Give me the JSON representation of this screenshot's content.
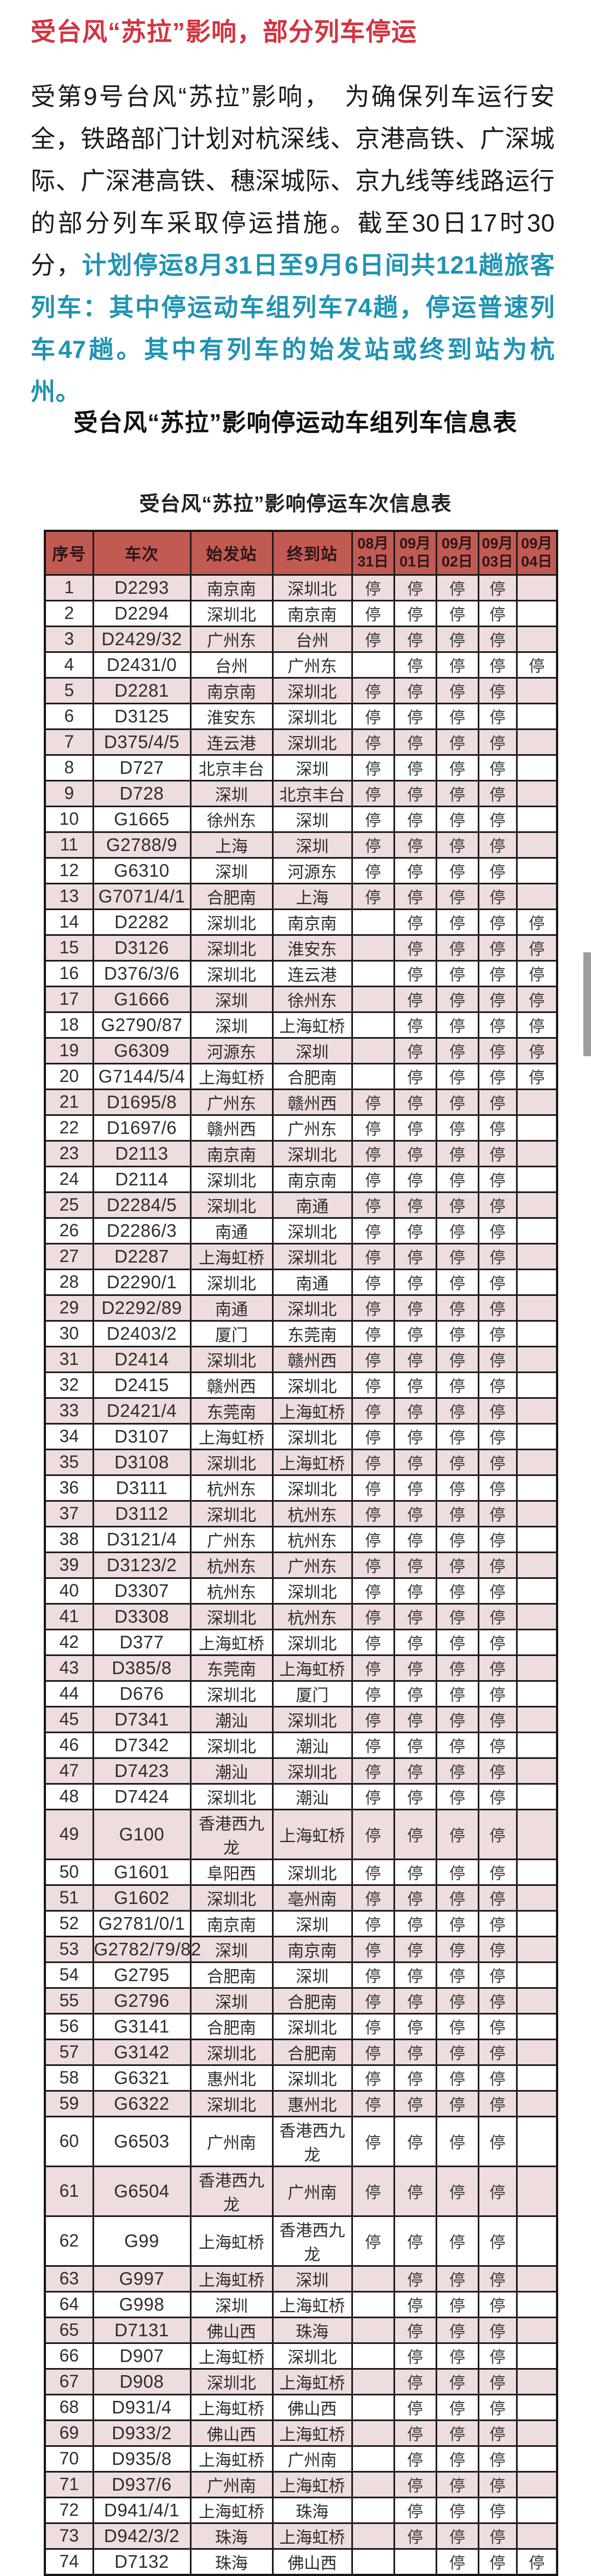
{
  "article": {
    "title": "受台风“苏拉”影响，部分列车停运",
    "paragraph_black": "受第9号台风“苏拉”影响，　为确保列车运行安全，铁路部门计划对杭深线、京港高铁、广深城际、广深港高铁、穗深城际、京九线等线路运行的部分列车采取停运措施。截至30日17时30分，",
    "paragraph_highlight": "计划停运8月31日至9月6日间共121趟旅客列车：其中停运动车组列车74趟，停运普速列车47趟。其中有列车的始发站或终到站为杭州。",
    "section_heading": "受台风“苏拉”影响停运动车组列车信息表"
  },
  "colors": {
    "title_red": "#d23440",
    "highlight_teal": "#2093b2",
    "table_header_bg": "#c25a54",
    "table_header_text": "#2b1618",
    "stripe_pink": "#efdcdc",
    "border_dark": "#1c1c1c",
    "scrollbar_grey": "#9d9d9d"
  },
  "table": {
    "title": "受台风“苏拉”影响停运车次信息表",
    "columns": [
      "序号",
      "车次",
      "始发站",
      "终到站",
      "08月\n31日",
      "09月\n01日",
      "09月\n02日",
      "09月\n03日",
      "09月\n04日"
    ],
    "rows": [
      {
        "no": "1",
        "train": "D2293",
        "from": "南京南",
        "to": "深圳北",
        "stops": [
          "停",
          "停",
          "停",
          "停",
          ""
        ]
      },
      {
        "no": "2",
        "train": "D2294",
        "from": "深圳北",
        "to": "南京南",
        "stops": [
          "停",
          "停",
          "停",
          "停",
          ""
        ]
      },
      {
        "no": "3",
        "train": "D2429/32",
        "from": "广州东",
        "to": "台州",
        "stops": [
          "停",
          "停",
          "停",
          "停",
          ""
        ]
      },
      {
        "no": "4",
        "train": "D2431/0",
        "from": "台州",
        "to": "广州东",
        "stops": [
          "",
          "停",
          "停",
          "停",
          "停"
        ]
      },
      {
        "no": "5",
        "train": "D2281",
        "from": "南京南",
        "to": "深圳北",
        "stops": [
          "停",
          "停",
          "停",
          "停",
          ""
        ]
      },
      {
        "no": "6",
        "train": "D3125",
        "from": "淮安东",
        "to": "深圳北",
        "stops": [
          "停",
          "停",
          "停",
          "停",
          ""
        ]
      },
      {
        "no": "7",
        "train": "D375/4/5",
        "from": "连云港",
        "to": "深圳北",
        "stops": [
          "停",
          "停",
          "停",
          "停",
          ""
        ]
      },
      {
        "no": "8",
        "train": "D727",
        "from": "北京丰台",
        "to": "深圳",
        "stops": [
          "停",
          "停",
          "停",
          "停",
          ""
        ]
      },
      {
        "no": "9",
        "train": "D728",
        "from": "深圳",
        "to": "北京丰台",
        "stops": [
          "停",
          "停",
          "停",
          "停",
          ""
        ]
      },
      {
        "no": "10",
        "train": "G1665",
        "from": "徐州东",
        "to": "深圳",
        "stops": [
          "停",
          "停",
          "停",
          "停",
          ""
        ]
      },
      {
        "no": "11",
        "train": "G2788/9",
        "from": "上海",
        "to": "深圳",
        "stops": [
          "停",
          "停",
          "停",
          "停",
          ""
        ]
      },
      {
        "no": "12",
        "train": "G6310",
        "from": "深圳",
        "to": "河源东",
        "stops": [
          "停",
          "停",
          "停",
          "停",
          ""
        ]
      },
      {
        "no": "13",
        "train": "G7071/4/1",
        "from": "合肥南",
        "to": "上海",
        "stops": [
          "停",
          "停",
          "停",
          "停",
          ""
        ]
      },
      {
        "no": "14",
        "train": "D2282",
        "from": "深圳北",
        "to": "南京南",
        "stops": [
          "",
          "停",
          "停",
          "停",
          "停"
        ]
      },
      {
        "no": "15",
        "train": "D3126",
        "from": "深圳北",
        "to": "淮安东",
        "stops": [
          "",
          "停",
          "停",
          "停",
          "停"
        ]
      },
      {
        "no": "16",
        "train": "D376/3/6",
        "from": "深圳北",
        "to": "连云港",
        "stops": [
          "",
          "停",
          "停",
          "停",
          "停"
        ]
      },
      {
        "no": "17",
        "train": "G1666",
        "from": "深圳",
        "to": "徐州东",
        "stops": [
          "",
          "停",
          "停",
          "停",
          "停"
        ]
      },
      {
        "no": "18",
        "train": "G2790/87",
        "from": "深圳",
        "to": "上海虹桥",
        "stops": [
          "",
          "停",
          "停",
          "停",
          "停"
        ]
      },
      {
        "no": "19",
        "train": "G6309",
        "from": "河源东",
        "to": "深圳",
        "stops": [
          "",
          "停",
          "停",
          "停",
          "停"
        ]
      },
      {
        "no": "20",
        "train": "G7144/5/4",
        "from": "上海虹桥",
        "to": "合肥南",
        "stops": [
          "",
          "停",
          "停",
          "停",
          "停"
        ]
      },
      {
        "no": "21",
        "train": "D1695/8",
        "from": "广州东",
        "to": "赣州西",
        "stops": [
          "停",
          "停",
          "停",
          "停",
          ""
        ]
      },
      {
        "no": "22",
        "train": "D1697/6",
        "from": "赣州西",
        "to": "广州东",
        "stops": [
          "停",
          "停",
          "停",
          "停",
          ""
        ]
      },
      {
        "no": "23",
        "train": "D2113",
        "from": "南京南",
        "to": "深圳北",
        "stops": [
          "停",
          "停",
          "停",
          "停",
          ""
        ]
      },
      {
        "no": "24",
        "train": "D2114",
        "from": "深圳北",
        "to": "南京南",
        "stops": [
          "停",
          "停",
          "停",
          "停",
          ""
        ]
      },
      {
        "no": "25",
        "train": "D2284/5",
        "from": "深圳北",
        "to": "南通",
        "stops": [
          "停",
          "停",
          "停",
          "停",
          ""
        ]
      },
      {
        "no": "26",
        "train": "D2286/3",
        "from": "南通",
        "to": "深圳北",
        "stops": [
          "停",
          "停",
          "停",
          "停",
          ""
        ]
      },
      {
        "no": "27",
        "train": "D2287",
        "from": "上海虹桥",
        "to": "深圳北",
        "stops": [
          "停",
          "停",
          "停",
          "停",
          ""
        ]
      },
      {
        "no": "28",
        "train": "D2290/1",
        "from": "深圳北",
        "to": "南通",
        "stops": [
          "停",
          "停",
          "停",
          "停",
          ""
        ]
      },
      {
        "no": "29",
        "train": "D2292/89",
        "from": "南通",
        "to": "深圳北",
        "stops": [
          "停",
          "停",
          "停",
          "停",
          ""
        ]
      },
      {
        "no": "30",
        "train": "D2403/2",
        "from": "厦门",
        "to": "东莞南",
        "stops": [
          "停",
          "停",
          "停",
          "停",
          ""
        ]
      },
      {
        "no": "31",
        "train": "D2414",
        "from": "深圳北",
        "to": "赣州西",
        "stops": [
          "停",
          "停",
          "停",
          "停",
          ""
        ]
      },
      {
        "no": "32",
        "train": "D2415",
        "from": "赣州西",
        "to": "深圳北",
        "stops": [
          "停",
          "停",
          "停",
          "停",
          ""
        ]
      },
      {
        "no": "33",
        "train": "D2421/4",
        "from": "东莞南",
        "to": "上海虹桥",
        "stops": [
          "停",
          "停",
          "停",
          "停",
          ""
        ]
      },
      {
        "no": "34",
        "train": "D3107",
        "from": "上海虹桥",
        "to": "深圳北",
        "stops": [
          "停",
          "停",
          "停",
          "停",
          ""
        ]
      },
      {
        "no": "35",
        "train": "D3108",
        "from": "深圳北",
        "to": "上海虹桥",
        "stops": [
          "停",
          "停",
          "停",
          "停",
          ""
        ]
      },
      {
        "no": "36",
        "train": "D3111",
        "from": "杭州东",
        "to": "深圳北",
        "stops": [
          "停",
          "停",
          "停",
          "停",
          ""
        ]
      },
      {
        "no": "37",
        "train": "D3112",
        "from": "深圳北",
        "to": "杭州东",
        "stops": [
          "停",
          "停",
          "停",
          "停",
          ""
        ]
      },
      {
        "no": "38",
        "train": "D3121/4",
        "from": "广州东",
        "to": "杭州东",
        "stops": [
          "停",
          "停",
          "停",
          "停",
          ""
        ]
      },
      {
        "no": "39",
        "train": "D3123/2",
        "from": "杭州东",
        "to": "广州东",
        "stops": [
          "停",
          "停",
          "停",
          "停",
          ""
        ]
      },
      {
        "no": "40",
        "train": "D3307",
        "from": "杭州东",
        "to": "深圳北",
        "stops": [
          "停",
          "停",
          "停",
          "停",
          ""
        ]
      },
      {
        "no": "41",
        "train": "D3308",
        "from": "深圳北",
        "to": "杭州东",
        "stops": [
          "停",
          "停",
          "停",
          "停",
          ""
        ]
      },
      {
        "no": "42",
        "train": "D377",
        "from": "上海虹桥",
        "to": "深圳北",
        "stops": [
          "停",
          "停",
          "停",
          "停",
          ""
        ]
      },
      {
        "no": "43",
        "train": "D385/8",
        "from": "东莞南",
        "to": "上海虹桥",
        "stops": [
          "停",
          "停",
          "停",
          "停",
          ""
        ]
      },
      {
        "no": "44",
        "train": "D676",
        "from": "深圳北",
        "to": "厦门",
        "stops": [
          "停",
          "停",
          "停",
          "停",
          ""
        ]
      },
      {
        "no": "45",
        "train": "D7341",
        "from": "潮汕",
        "to": "深圳北",
        "stops": [
          "停",
          "停",
          "停",
          "停",
          ""
        ]
      },
      {
        "no": "46",
        "train": "D7342",
        "from": "深圳北",
        "to": "潮汕",
        "stops": [
          "停",
          "停",
          "停",
          "停",
          ""
        ]
      },
      {
        "no": "47",
        "train": "D7423",
        "from": "潮汕",
        "to": "深圳北",
        "stops": [
          "停",
          "停",
          "停",
          "停",
          ""
        ]
      },
      {
        "no": "48",
        "train": "D7424",
        "from": "深圳北",
        "to": "潮汕",
        "stops": [
          "停",
          "停",
          "停",
          "停",
          ""
        ]
      },
      {
        "no": "49",
        "train": "G100",
        "from": "香港西九龙",
        "to": "上海虹桥",
        "stops": [
          "停",
          "停",
          "停",
          "停",
          ""
        ]
      },
      {
        "no": "50",
        "train": "G1601",
        "from": "阜阳西",
        "to": "深圳北",
        "stops": [
          "停",
          "停",
          "停",
          "停",
          ""
        ]
      },
      {
        "no": "51",
        "train": "G1602",
        "from": "深圳北",
        "to": "亳州南",
        "stops": [
          "停",
          "停",
          "停",
          "停",
          ""
        ]
      },
      {
        "no": "52",
        "train": "G2781/0/1",
        "from": "南京南",
        "to": "深圳",
        "stops": [
          "停",
          "停",
          "停",
          "停",
          ""
        ]
      },
      {
        "no": "53",
        "train": "G2782/79/82",
        "from": "深圳",
        "to": "南京南",
        "stops": [
          "停",
          "停",
          "停",
          "停",
          ""
        ]
      },
      {
        "no": "54",
        "train": "G2795",
        "from": "合肥南",
        "to": "深圳",
        "stops": [
          "停",
          "停",
          "停",
          "停",
          ""
        ]
      },
      {
        "no": "55",
        "train": "G2796",
        "from": "深圳",
        "to": "合肥南",
        "stops": [
          "停",
          "停",
          "停",
          "停",
          ""
        ]
      },
      {
        "no": "56",
        "train": "G3141",
        "from": "合肥南",
        "to": "深圳北",
        "stops": [
          "停",
          "停",
          "停",
          "停",
          ""
        ]
      },
      {
        "no": "57",
        "train": "G3142",
        "from": "深圳北",
        "to": "合肥南",
        "stops": [
          "停",
          "停",
          "停",
          "停",
          ""
        ]
      },
      {
        "no": "58",
        "train": "G6321",
        "from": "惠州北",
        "to": "深圳北",
        "stops": [
          "停",
          "停",
          "停",
          "停",
          ""
        ]
      },
      {
        "no": "59",
        "train": "G6322",
        "from": "深圳北",
        "to": "惠州北",
        "stops": [
          "停",
          "停",
          "停",
          "停",
          ""
        ]
      },
      {
        "no": "60",
        "train": "G6503",
        "from": "广州南",
        "to": "香港西九龙",
        "stops": [
          "停",
          "停",
          "停",
          "停",
          ""
        ]
      },
      {
        "no": "61",
        "train": "G6504",
        "from": "香港西九龙",
        "to": "广州南",
        "stops": [
          "停",
          "停",
          "停",
          "停",
          ""
        ]
      },
      {
        "no": "62",
        "train": "G99",
        "from": "上海虹桥",
        "to": "香港西九龙",
        "stops": [
          "停",
          "停",
          "停",
          "停",
          ""
        ]
      },
      {
        "no": "63",
        "train": "G997",
        "from": "上海虹桥",
        "to": "深圳",
        "stops": [
          "",
          "停",
          "停",
          "停",
          ""
        ]
      },
      {
        "no": "64",
        "train": "G998",
        "from": "深圳",
        "to": "上海虹桥",
        "stops": [
          "",
          "停",
          "停",
          "停",
          ""
        ]
      },
      {
        "no": "65",
        "train": "D7131",
        "from": "佛山西",
        "to": "珠海",
        "stops": [
          "",
          "停",
          "停",
          "停",
          ""
        ]
      },
      {
        "no": "66",
        "train": "D907",
        "from": "上海虹桥",
        "to": "深圳北",
        "stops": [
          "",
          "停",
          "停",
          "停",
          ""
        ]
      },
      {
        "no": "67",
        "train": "D908",
        "from": "深圳北",
        "to": "上海虹桥",
        "stops": [
          "",
          "停",
          "停",
          "停",
          ""
        ]
      },
      {
        "no": "68",
        "train": "D931/4",
        "from": "上海虹桥",
        "to": "佛山西",
        "stops": [
          "",
          "停",
          "停",
          "停",
          ""
        ]
      },
      {
        "no": "69",
        "train": "D933/2",
        "from": "佛山西",
        "to": "上海虹桥",
        "stops": [
          "",
          "停",
          "停",
          "停",
          ""
        ]
      },
      {
        "no": "70",
        "train": "D935/8",
        "from": "上海虹桥",
        "to": "广州南",
        "stops": [
          "",
          "停",
          "停",
          "停",
          ""
        ]
      },
      {
        "no": "71",
        "train": "D937/6",
        "from": "广州南",
        "to": "上海虹桥",
        "stops": [
          "",
          "停",
          "停",
          "停",
          ""
        ]
      },
      {
        "no": "72",
        "train": "D941/4/1",
        "from": "上海虹桥",
        "to": "珠海",
        "stops": [
          "",
          "停",
          "停",
          "停",
          ""
        ]
      },
      {
        "no": "73",
        "train": "D942/3/2",
        "from": "珠海",
        "to": "上海虹桥",
        "stops": [
          "",
          "停",
          "停",
          "停",
          ""
        ]
      },
      {
        "no": "74",
        "train": "D7132",
        "from": "珠海",
        "to": "佛山西",
        "stops": [
          "",
          "",
          "停",
          "停",
          "停"
        ]
      }
    ]
  }
}
